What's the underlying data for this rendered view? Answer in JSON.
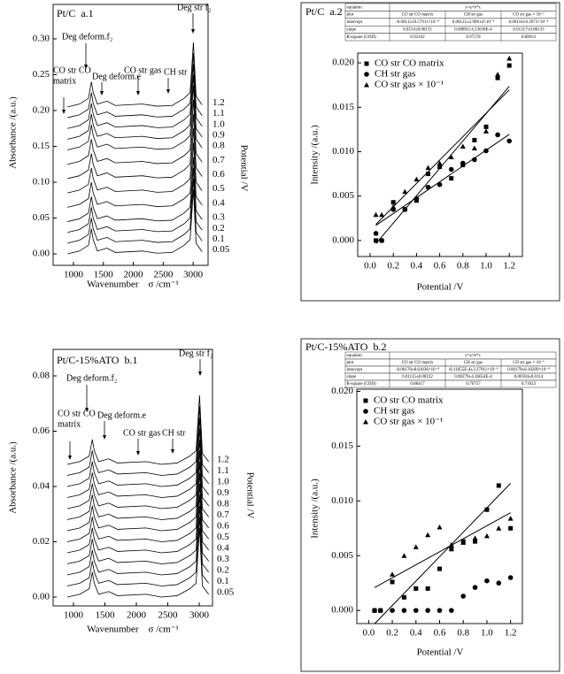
{
  "chart_data": [
    {
      "type": "line",
      "title": "Pt/C  a.1",
      "x_label": "Wavenumber    σ /cm⁻¹",
      "y_label": "Absorbance /(a.u.)",
      "y2_label": "Potential /V",
      "color": "#000000",
      "x": [
        900,
        1100,
        1250,
        1300,
        1330,
        1400,
        1560,
        1700,
        2150,
        2400,
        2650,
        2850,
        2950,
        3005,
        3050,
        3150
      ],
      "series": [
        {
          "name": "1.2",
          "values": [
            0.205,
            0.209,
            0.217,
            0.24,
            0.225,
            0.209,
            0.213,
            0.207,
            0.209,
            0.206,
            0.207,
            0.217,
            0.225,
            0.295,
            0.22,
            0.208
          ]
        },
        {
          "name": "1.1",
          "values": [
            0.19,
            0.194,
            0.202,
            0.225,
            0.21,
            0.194,
            0.198,
            0.192,
            0.194,
            0.191,
            0.192,
            0.202,
            0.21,
            0.28,
            0.205,
            0.193
          ]
        },
        {
          "name": "1.0",
          "values": [
            0.175,
            0.179,
            0.187,
            0.21,
            0.195,
            0.179,
            0.183,
            0.177,
            0.179,
            0.176,
            0.177,
            0.187,
            0.195,
            0.265,
            0.19,
            0.178
          ]
        },
        {
          "name": "0.9",
          "values": [
            0.16,
            0.164,
            0.172,
            0.195,
            0.18,
            0.164,
            0.168,
            0.162,
            0.164,
            0.161,
            0.162,
            0.172,
            0.18,
            0.25,
            0.175,
            0.163
          ]
        },
        {
          "name": "0.8",
          "values": [
            0.145,
            0.149,
            0.157,
            0.18,
            0.165,
            0.149,
            0.153,
            0.147,
            0.149,
            0.146,
            0.147,
            0.157,
            0.165,
            0.235,
            0.16,
            0.148
          ]
        },
        {
          "name": "0.7",
          "values": [
            0.125,
            0.129,
            0.137,
            0.16,
            0.145,
            0.129,
            0.133,
            0.127,
            0.129,
            0.126,
            0.127,
            0.137,
            0.145,
            0.215,
            0.14,
            0.128
          ]
        },
        {
          "name": "0.6",
          "values": [
            0.105,
            0.109,
            0.117,
            0.14,
            0.125,
            0.109,
            0.113,
            0.107,
            0.109,
            0.106,
            0.107,
            0.117,
            0.125,
            0.195,
            0.12,
            0.108
          ]
        },
        {
          "name": "0.5",
          "values": [
            0.085,
            0.089,
            0.097,
            0.12,
            0.105,
            0.089,
            0.093,
            0.087,
            0.089,
            0.086,
            0.087,
            0.097,
            0.105,
            0.175,
            0.1,
            0.088
          ]
        },
        {
          "name": "0.4",
          "values": [
            0.065,
            0.069,
            0.077,
            0.1,
            0.085,
            0.069,
            0.073,
            0.067,
            0.069,
            0.066,
            0.067,
            0.077,
            0.085,
            0.155,
            0.08,
            0.068
          ]
        },
        {
          "name": "0.3",
          "values": [
            0.045,
            0.049,
            0.057,
            0.08,
            0.065,
            0.049,
            0.053,
            0.047,
            0.049,
            0.046,
            0.047,
            0.057,
            0.065,
            0.135,
            0.06,
            0.048
          ]
        },
        {
          "name": "0.2",
          "values": [
            0.03,
            0.034,
            0.042,
            0.065,
            0.05,
            0.034,
            0.038,
            0.032,
            0.034,
            0.031,
            0.032,
            0.042,
            0.05,
            0.12,
            0.045,
            0.033
          ]
        },
        {
          "name": "0.1",
          "values": [
            0.015,
            0.019,
            0.027,
            0.05,
            0.035,
            0.019,
            0.023,
            0.017,
            0.019,
            0.016,
            0.017,
            0.027,
            0.035,
            0.105,
            0.03,
            0.018
          ]
        },
        {
          "name": "0.05",
          "values": [
            0,
            0.004,
            0.012,
            0.035,
            0.02,
            0.004,
            0.008,
            0.002,
            0.004,
            0.001,
            0.002,
            0.012,
            0.02,
            0.09,
            0.015,
            0.003
          ]
        }
      ],
      "xlim": [
        660,
        3250
      ],
      "ylim": [
        -0.016,
        0.348
      ],
      "xticks": [
        1000,
        1500,
        2000,
        2500,
        3000
      ],
      "yticks": [
        {
          "value": 0,
          "label": "0.00"
        },
        0.05,
        {
          "value": 0.1,
          "label": "0.10"
        },
        0.15,
        {
          "value": 0.2,
          "label": "0.20"
        },
        0.25,
        {
          "value": 0.3,
          "label": "0.30"
        }
      ],
      "annotations": [
        [
          "CO str CO",
          "matrix"
        ],
        [
          "Deg deform.f₂"
        ],
        [
          "Deg deform.e"
        ],
        [
          "CO str gas"
        ],
        [
          "CH str"
        ],
        [
          "Deg str f₂"
        ]
      ]
    },
    {
      "type": "scatter",
      "title": "Pt/C  a.2",
      "x_label": "Potential /V",
      "y_label": "Intensity /(a.u.)",
      "color": "#000000",
      "table": {
        "rows": [
          [
            "equation",
            "y=a+b*x"
          ],
          [
            "plot",
            "CO str CO matrix",
            "CH str gas",
            "CO str gas × 10⁻¹"
          ],
          [
            "intercept",
            "-0.00112±9.57911×10⁻⁴",
            "0.00125±2.99614×10⁻⁴",
            "0.00116±9.3973×10⁻⁴"
          ],
          [
            "slope",
            "0.0154±0.00135",
            "0.00892±4.23636E-4",
            "0.01317±0.00133"
          ],
          [
            "R-square (COD)",
            "0.92162",
            "0.97578",
            "0.89933"
          ]
        ]
      },
      "x": [
        0.05,
        0.1,
        0.2,
        0.3,
        0.4,
        0.5,
        0.6,
        0.7,
        0.8,
        0.9,
        1.0,
        1.1,
        1.2
      ],
      "series": [
        {
          "name": "CO str CO matrix",
          "marker": "square",
          "values": [
            0,
            0,
            0.0043,
            0.0035,
            0.0045,
            0.0075,
            0.0083,
            0.007,
            0.0085,
            0.0113,
            0.0128,
            0.0183,
            0.0197
          ]
        },
        {
          "name": "CH str gas",
          "marker": "circle",
          "values": [
            0.0008,
            0,
            0.0035,
            0.0035,
            0.0047,
            0.006,
            0.0063,
            0.008,
            0.0087,
            0.0091,
            0.0101,
            0.0119,
            0.0112
          ]
        },
        {
          "name": "CO str gas × 10⁻¹",
          "marker": "triangle",
          "values": [
            0.0029,
            0.0029,
            0.0038,
            0.0055,
            0.0069,
            0.0082,
            0.0087,
            0.0094,
            0.0106,
            0.0104,
            0.0123,
            0.0187,
            0.0205
          ]
        }
      ],
      "fit_lines": [
        {
          "x": [
            0.05,
            1.2
          ],
          "values": [
            -0.00035,
            0.01736
          ]
        },
        {
          "x": [
            0.05,
            1.2
          ],
          "values": [
            0.0017,
            0.01195
          ]
        },
        {
          "x": [
            0.05,
            1.2
          ],
          "values": [
            0.00182,
            0.01696
          ]
        }
      ],
      "xlim": [
        -0.107,
        1.313
      ],
      "ylim": [
        -0.0018,
        0.0211
      ],
      "xticks": [
        {
          "value": 0,
          "label": "0.0"
        },
        0.2,
        0.4,
        0.6,
        0.8,
        {
          "value": 1,
          "label": "1.0"
        },
        1.2
      ],
      "yticks": [
        {
          "value": 0,
          "label": "0.000"
        },
        0.005,
        {
          "value": 0.01,
          "label": "0.010"
        },
        0.015,
        {
          "value": 0.02,
          "label": "0.020"
        }
      ]
    },
    {
      "type": "line",
      "title": "Pt/C-15%ATO  b.1",
      "x_label": "Wavenumber    σ /cm⁻¹",
      "y_label": "Absorbance /(a.u.)",
      "y2_label": "Potential /V",
      "color": "#000000",
      "x": [
        900,
        1100,
        1250,
        1300,
        1330,
        1400,
        1560,
        1700,
        2150,
        2400,
        2650,
        2850,
        2950,
        3005,
        3050,
        3150
      ],
      "series": [
        {
          "name": "1.2",
          "values": [
            0.048,
            0.049,
            0.051,
            0.057,
            0.053,
            0.049,
            0.05,
            0.0485,
            0.049,
            0.048,
            0.0485,
            0.051,
            0.053,
            0.073,
            0.052,
            0.049
          ]
        },
        {
          "name": "1.1",
          "values": [
            0.044,
            0.045,
            0.047,
            0.053,
            0.049,
            0.045,
            0.046,
            0.0445,
            0.045,
            0.044,
            0.0445,
            0.047,
            0.049,
            0.069,
            0.048,
            0.045
          ]
        },
        {
          "name": "1.0",
          "values": [
            0.04,
            0.041,
            0.043,
            0.049,
            0.045,
            0.041,
            0.042,
            0.0405,
            0.041,
            0.04,
            0.0405,
            0.043,
            0.045,
            0.065,
            0.044,
            0.041
          ]
        },
        {
          "name": "0.9",
          "values": [
            0.036,
            0.037,
            0.039,
            0.045,
            0.041,
            0.037,
            0.038,
            0.0365,
            0.037,
            0.036,
            0.0365,
            0.039,
            0.041,
            0.061,
            0.04,
            0.037
          ]
        },
        {
          "name": "0.8",
          "values": [
            0.032,
            0.033,
            0.035,
            0.041,
            0.037,
            0.033,
            0.034,
            0.0325,
            0.033,
            0.032,
            0.0325,
            0.035,
            0.037,
            0.057,
            0.036,
            0.033
          ]
        },
        {
          "name": "0.7",
          "values": [
            0.028,
            0.029,
            0.031,
            0.037,
            0.033,
            0.029,
            0.03,
            0.0285,
            0.029,
            0.028,
            0.0285,
            0.031,
            0.033,
            0.053,
            0.032,
            0.029
          ]
        },
        {
          "name": "0.6",
          "values": [
            0.024,
            0.025,
            0.027,
            0.033,
            0.029,
            0.025,
            0.026,
            0.0245,
            0.025,
            0.024,
            0.0245,
            0.027,
            0.029,
            0.049,
            0.028,
            0.025
          ]
        },
        {
          "name": "0.5",
          "values": [
            0.02,
            0.021,
            0.023,
            0.029,
            0.025,
            0.021,
            0.022,
            0.0205,
            0.021,
            0.02,
            0.0205,
            0.023,
            0.025,
            0.045,
            0.024,
            0.021
          ]
        },
        {
          "name": "0.4",
          "values": [
            0.016,
            0.017,
            0.019,
            0.025,
            0.021,
            0.017,
            0.018,
            0.0165,
            0.017,
            0.016,
            0.0165,
            0.019,
            0.021,
            0.041,
            0.02,
            0.017
          ]
        },
        {
          "name": "0.3",
          "values": [
            0.012,
            0.013,
            0.015,
            0.021,
            0.017,
            0.013,
            0.014,
            0.0125,
            0.013,
            0.012,
            0.0125,
            0.015,
            0.017,
            0.037,
            0.016,
            0.013
          ]
        },
        {
          "name": "0.2",
          "values": [
            0.008,
            0.009,
            0.011,
            0.017,
            0.013,
            0.009,
            0.01,
            0.0085,
            0.009,
            0.008,
            0.0085,
            0.011,
            0.013,
            0.033,
            0.012,
            0.009
          ]
        },
        {
          "name": "0.1",
          "values": [
            0.004,
            0.005,
            0.007,
            0.013,
            0.009,
            0.005,
            0.006,
            0.0045,
            0.005,
            0.004,
            0.0045,
            0.007,
            0.009,
            0.029,
            0.008,
            0.005
          ]
        },
        {
          "name": "0.05",
          "values": [
            0,
            0.001,
            0.003,
            0.009,
            0.005,
            0.001,
            0.002,
            0.0005,
            0.001,
            0,
            0.0005,
            0.003,
            0.005,
            0.025,
            0.004,
            0.001
          ]
        }
      ],
      "xlim": [
        676,
        3211
      ],
      "ylim": [
        -0.0032,
        0.0896
      ],
      "xticks": [
        1000,
        1500,
        2000,
        2500,
        3000
      ],
      "yticks": [
        {
          "value": 0,
          "label": "0.00"
        },
        0.02,
        0.04,
        0.06,
        0.08
      ],
      "annotations": [
        [
          "CO str CO",
          "matrix"
        ],
        [
          "Deg deform.f₂"
        ],
        [
          "Deg deform.e"
        ],
        [
          "CO str gas"
        ],
        [
          "CH str"
        ],
        [
          "Deg str f₂"
        ]
      ]
    },
    {
      "type": "scatter",
      "title": "Pt/C-15%ATO  b.2",
      "x_label": "Potential /V",
      "y_label": "Intensity /(a.u.)",
      "color": "#000000",
      "table": {
        "rows": [
          [
            "equation",
            "y=a+b*x"
          ],
          [
            "plot",
            "CO str CO matrix",
            "CH str gas",
            "CO str gas × 10⁻¹"
          ],
          [
            "intercept",
            "-0.00178±8.61036×10⁻⁴",
            "-8.11055E-4±3.27911×10⁻⁴",
            "0.00179±8.10209×10⁻⁴"
          ],
          [
            "slope",
            "0.01115±0.00122",
            "0.00279±4.36654E-4",
            "0.00594±0.0114"
          ],
          [
            "R-square (COD)",
            "0.88417",
            "0.76757",
            "0.71023"
          ]
        ]
      },
      "x": [
        0.05,
        0.1,
        0.2,
        0.3,
        0.4,
        0.5,
        0.6,
        0.7,
        0.8,
        0.9,
        1.0,
        1.1,
        1.2
      ],
      "series": [
        {
          "name": "CO str CO matrix",
          "marker": "square",
          "values": [
            0,
            0,
            0.0026,
            0.0012,
            0.002,
            0.002,
            0.0038,
            0.0056,
            0.0063,
            0.0063,
            0.0092,
            0.0114,
            0.0075
          ]
        },
        {
          "name": "CH str gas",
          "marker": "circle",
          "values": [
            0,
            0,
            0,
            0,
            0,
            0,
            0,
            0,
            0.0013,
            0.0021,
            0.0027,
            0.0025,
            0.003
          ]
        },
        {
          "name": "CO str gas × 10⁻¹",
          "marker": "triangle",
          "values": [
            0,
            0,
            0.0033,
            0.005,
            0.0058,
            0.0069,
            0.0076,
            0.006,
            0.0062,
            0.0066,
            0.0068,
            0.0075,
            0.0084
          ]
        }
      ],
      "fit_lines": [
        {
          "x": [
            0.05,
            1.2
          ],
          "values": [
            -0.00122,
            0.0116
          ]
        },
        {
          "x": [
            0.05,
            1.2
          ],
          "values": [
            0.00209,
            0.00892
          ]
        }
      ],
      "xlim": [
        -0.1,
        1.3
      ],
      "ylim": [
        -0.0012,
        0.0202
      ],
      "xticks": [
        {
          "value": 0,
          "label": "0.0"
        },
        0.2,
        0.4,
        0.6,
        0.8,
        {
          "value": 1,
          "label": "1.0"
        },
        1.2
      ],
      "yticks": [
        {
          "value": 0,
          "label": "0.000"
        },
        0.005,
        {
          "value": 0.01,
          "label": "0.010"
        },
        0.015,
        {
          "value": 0.02,
          "label": "0.020"
        }
      ]
    }
  ]
}
